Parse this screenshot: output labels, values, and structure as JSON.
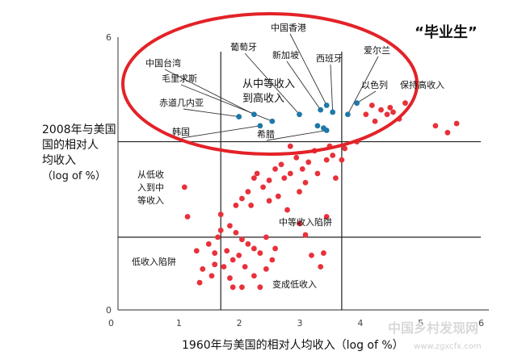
{
  "chart_data": {
    "type": "scatter",
    "title": "",
    "badge": "“毕业生”",
    "xlabel": "1960年与美国的相对人均收入（log of %）",
    "ylabel_lines": [
      "2008年与美国",
      "国的相对人",
      "均收入",
      "（log of %）"
    ],
    "xlim": [
      0,
      6
    ],
    "ylim": [
      0,
      6
    ],
    "xticks": [
      0,
      1,
      2,
      3,
      4,
      5,
      6
    ],
    "yticks": [
      0,
      6
    ],
    "thresholds": {
      "x": [
        1.7,
        3.7
      ],
      "y": [
        1.6,
        3.7
      ]
    },
    "region_labels": {
      "low_to_mid": [
        "从低收",
        "入到中",
        "等收入"
      ],
      "middle_trap": "中等收入陷阱",
      "low_trap": "低收入陷阱",
      "became_low": "变成低收入"
    },
    "highlight": {
      "label_mid_to_high": [
        "从中等收入",
        "到高收入"
      ],
      "label_keep_high": "保持高收入",
      "points": [
        {
          "name": "中国台湾",
          "x": 2.25,
          "y": 4.3
        },
        {
          "name": "毛里求斯",
          "x": 2.55,
          "y": 4.15
        },
        {
          "name": "赤道几内亚",
          "x": 2.0,
          "y": 4.25
        },
        {
          "name": "韩国",
          "x": 2.35,
          "y": 4.05
        },
        {
          "name": "葡萄牙",
          "x": 3.0,
          "y": 4.3
        },
        {
          "name": "中国香港",
          "x": 3.45,
          "y": 4.5
        },
        {
          "name": "新加坡",
          "x": 3.35,
          "y": 4.4
        },
        {
          "name": "西班牙",
          "x": 3.55,
          "y": 4.35
        },
        {
          "name": "爱尔兰",
          "x": 3.8,
          "y": 4.3
        },
        {
          "name": "以色列",
          "x": 3.95,
          "y": 4.55
        },
        {
          "name": "希腊",
          "x": 3.45,
          "y": 3.95
        }
      ],
      "extra_points": [
        {
          "x": 3.4,
          "y": 4.0
        },
        {
          "x": 3.3,
          "y": 4.05
        }
      ]
    },
    "series": [
      {
        "color": "#e8313a",
        "points": [
          [
            4.2,
            4.5
          ],
          [
            4.35,
            4.4
          ],
          [
            4.45,
            4.3
          ],
          [
            4.55,
            4.35
          ],
          [
            4.65,
            4.2
          ],
          [
            4.75,
            4.55
          ],
          [
            4.1,
            4.3
          ],
          [
            4.25,
            4.15
          ],
          [
            4.5,
            4.45
          ],
          [
            5.6,
            4.1
          ],
          [
            5.45,
            3.9
          ],
          [
            5.25,
            4.05
          ],
          [
            3.95,
            3.7
          ],
          [
            3.75,
            3.55
          ],
          [
            3.55,
            3.4
          ],
          [
            3.45,
            3.3
          ],
          [
            3.25,
            3.5
          ],
          [
            3.15,
            3.25
          ],
          [
            3.05,
            3.1
          ],
          [
            2.95,
            3.35
          ],
          [
            2.85,
            3.0
          ],
          [
            2.75,
            2.9
          ],
          [
            2.6,
            3.1
          ],
          [
            2.5,
            2.85
          ],
          [
            2.4,
            2.7
          ],
          [
            2.25,
            2.9
          ],
          [
            2.15,
            2.6
          ],
          [
            2.05,
            2.45
          ],
          [
            1.95,
            2.3
          ],
          [
            2.5,
            2.4
          ],
          [
            2.65,
            2.5
          ],
          [
            2.8,
            2.2
          ],
          [
            3.0,
            2.6
          ],
          [
            3.1,
            2.8
          ],
          [
            3.3,
            3.0
          ],
          [
            3.5,
            3.6
          ],
          [
            3.7,
            3.3
          ],
          [
            3.6,
            2.9
          ],
          [
            2.3,
            3.0
          ],
          [
            2.7,
            3.2
          ],
          [
            2.2,
            2.3
          ],
          [
            2.85,
            3.6
          ],
          [
            1.1,
            2.7
          ],
          [
            1.15,
            2.05
          ],
          [
            1.3,
            1.3
          ],
          [
            1.7,
            2.1
          ],
          [
            1.85,
            1.85
          ],
          [
            1.95,
            1.7
          ],
          [
            2.05,
            1.55
          ],
          [
            2.15,
            1.45
          ],
          [
            2.25,
            1.35
          ],
          [
            2.35,
            1.25
          ],
          [
            2.45,
            1.6
          ],
          [
            2.55,
            1.1
          ],
          [
            2.6,
            1.35
          ],
          [
            2.0,
            1.2
          ],
          [
            1.9,
            1.1
          ],
          [
            1.8,
            1.3
          ],
          [
            1.75,
            0.95
          ],
          [
            1.85,
            0.7
          ],
          [
            2.1,
            0.95
          ],
          [
            2.25,
            0.75
          ],
          [
            2.45,
            0.9
          ],
          [
            2.35,
            0.5
          ],
          [
            2.05,
            0.5
          ],
          [
            1.9,
            0.5
          ],
          [
            1.6,
            1.0
          ],
          [
            1.55,
            0.75
          ],
          [
            1.4,
            0.9
          ],
          [
            1.35,
            0.6
          ],
          [
            1.6,
            1.25
          ],
          [
            1.5,
            1.45
          ],
          [
            1.65,
            1.6
          ],
          [
            1.7,
            1.75
          ],
          [
            3.2,
            1.2
          ],
          [
            3.4,
            1.25
          ],
          [
            3.35,
            0.95
          ],
          [
            3.1,
            1.65
          ],
          [
            3.0,
            1.9
          ],
          [
            3.45,
            2.05
          ]
        ]
      }
    ],
    "highlight_color": "#1f78a8",
    "ellipse_color": "#e32228"
  },
  "watermark": {
    "text": "中国乡村发现网",
    "sub": "www.zgxcfx.com"
  }
}
